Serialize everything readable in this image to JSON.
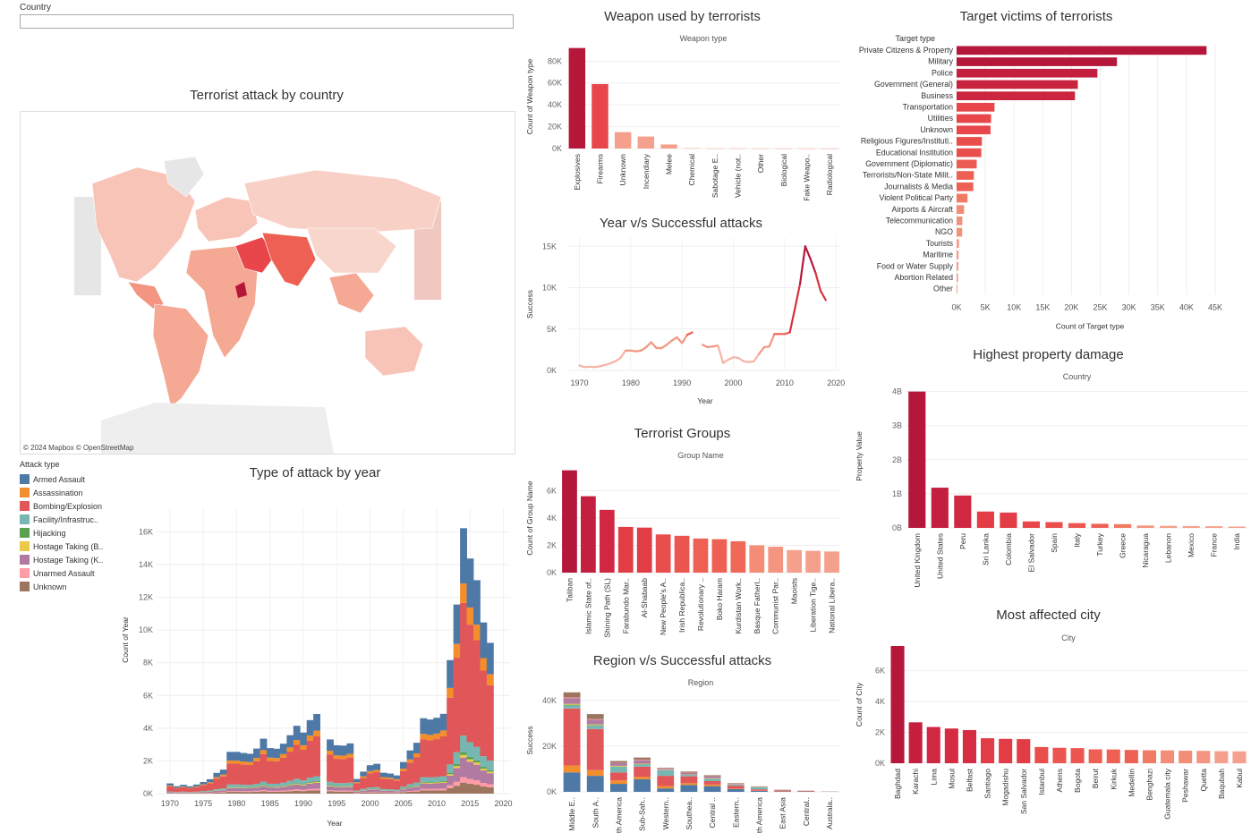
{
  "filter": {
    "label": "Country",
    "value": ""
  },
  "map": {
    "title": "Terrorist attack by country",
    "credit": "© 2024 Mapbox  © OpenStreetMap"
  },
  "colors": {
    "dark": "#b5173b",
    "mid": "#e8464a",
    "light": "#f5a08d",
    "grid": "#eeeeee"
  },
  "chart_data": [
    {
      "id": "weapon",
      "type": "bar",
      "title": "Weapon used by terrorists",
      "subtitle": "Weapon type",
      "ylabel": "Count of Weapon type",
      "ylim": [
        0,
        95000
      ],
      "yticks": [
        0,
        20000,
        40000,
        60000,
        80000
      ],
      "ytick_labels": [
        "0K",
        "20K",
        "40K",
        "60K",
        "80K"
      ],
      "categories": [
        "Explosives",
        "Firearms",
        "Unknown",
        "Incendiary",
        "Melee",
        "Chemical",
        "Sabotage E..",
        "Vehicle (not..",
        "Other",
        "Biological",
        "Fake Weapo..",
        "Radiological"
      ],
      "values": [
        92000,
        59000,
        15000,
        11000,
        3700,
        320,
        140,
        140,
        110,
        35,
        30,
        15
      ],
      "colors": [
        "#b5173b",
        "#e8464a",
        "#f5a08d",
        "#f5a08d",
        "#f5a08d",
        "#f5a08d",
        "#f5a08d",
        "#f5a08d",
        "#f5a08d",
        "#f5a08d",
        "#f5a08d",
        "#f5a08d"
      ]
    },
    {
      "id": "target",
      "type": "bar",
      "orientation": "horizontal",
      "title": "Target victims of terrorists",
      "subtitle": "Target type",
      "xlabel": "Count of Target type",
      "xlim": [
        0,
        45000
      ],
      "xticks": [
        0,
        5000,
        10000,
        15000,
        20000,
        25000,
        30000,
        35000,
        40000,
        45000
      ],
      "xtick_labels": [
        "0K",
        "5K",
        "10K",
        "15K",
        "20K",
        "25K",
        "30K",
        "35K",
        "40K",
        "45K"
      ],
      "categories": [
        "Private Citizens & Property",
        "Military",
        "Police",
        "Government (General)",
        "Business",
        "Transportation",
        "Utilities",
        "Unknown",
        "Religious Figures/Instituti..",
        "Educational Institution",
        "Government (Diplomatic)",
        "Terrorists/Non-State Milit..",
        "Journalists & Media",
        "Violent Political Party",
        "Airports & Aircraft",
        "Telecommunication",
        "NGO",
        "Tourists",
        "Maritime",
        "Food or Water Supply",
        "Abortion Related",
        "Other"
      ],
      "values": [
        43500,
        27900,
        24500,
        21100,
        20600,
        6600,
        6000,
        5900,
        4400,
        4300,
        3500,
        3000,
        2900,
        1900,
        1300,
        1000,
        970,
        440,
        350,
        320,
        260,
        140
      ],
      "colors": [
        "#b5173b",
        "#b5173b",
        "#c41f3f",
        "#c8223f",
        "#cc2540",
        "#e8464a",
        "#e8464a",
        "#e8464a",
        "#ea4e4c",
        "#ea4e4c",
        "#ed5c52",
        "#ee6054",
        "#ee6054",
        "#f07a62",
        "#f38d75",
        "#f3927a",
        "#f3927a",
        "#f5a08d",
        "#f5a08d",
        "#f5a08d",
        "#f5a08d",
        "#f5a08d"
      ]
    },
    {
      "id": "success",
      "type": "line",
      "title": "Year v/s Successful attacks",
      "xlabel": "Year",
      "ylabel": "Success",
      "xlim": [
        1968,
        2021
      ],
      "ylim": [
        0,
        16000
      ],
      "xticks": [
        1970,
        1980,
        1990,
        2000,
        2010,
        2020
      ],
      "yticks": [
        0,
        5000,
        10000,
        15000
      ],
      "ytick_labels": [
        "0K",
        "5K",
        "10K",
        "15K"
      ],
      "x": [
        1970,
        1971,
        1972,
        1973,
        1974,
        1975,
        1976,
        1977,
        1978,
        1979,
        1980,
        1981,
        1982,
        1983,
        1984,
        1985,
        1986,
        1987,
        1988,
        1989,
        1990,
        1991,
        1992,
        1994,
        1995,
        1996,
        1997,
        1998,
        1999,
        2000,
        2001,
        2002,
        2003,
        2004,
        2005,
        2006,
        2007,
        2008,
        2009,
        2010,
        2011,
        2012,
        2013,
        2014,
        2015,
        2016,
        2017,
        2018
      ],
      "y": [
        600,
        400,
        450,
        400,
        500,
        650,
        850,
        1100,
        1500,
        2400,
        2400,
        2300,
        2400,
        2800,
        3400,
        2700,
        2700,
        3100,
        3600,
        4000,
        3300,
        4300,
        4600,
        3100,
        2800,
        2900,
        3000,
        900,
        1300,
        1600,
        1500,
        1100,
        1000,
        1100,
        2000,
        2800,
        2900,
        4400,
        4400,
        4400,
        4600,
        7500,
        10500,
        15000,
        13500,
        11800,
        9600,
        8500
      ]
    },
    {
      "id": "groups",
      "type": "bar",
      "title": "Terrorist Groups",
      "subtitle": "Group Name",
      "ylabel": "Count of Group Name",
      "ylim": [
        0,
        8000
      ],
      "yticks": [
        0,
        2000,
        4000,
        6000
      ],
      "ytick_labels": [
        "0K",
        "2K",
        "4K",
        "6K"
      ],
      "categories": [
        "Taliban",
        "Islamic State of..",
        "Shining Path (SL)",
        "Farabundo Mar..",
        "Al-Shabaab",
        "New People's A..",
        "Irish Republica..",
        "Revolutionary ..",
        "Boko Haram",
        "Kurdistan Work..",
        "Basque Fatherl..",
        "Communist Par..",
        "Maoists",
        "Liberation Tige..",
        "National Libera.."
      ],
      "values": [
        7500,
        5600,
        4600,
        3350,
        3300,
        2800,
        2700,
        2500,
        2450,
        2300,
        2000,
        1900,
        1650,
        1600,
        1550
      ],
      "colors": [
        "#b5173b",
        "#c41f3f",
        "#d02842",
        "#e23c46",
        "#e23c46",
        "#ea4e4c",
        "#ec5651",
        "#ee6054",
        "#ee6054",
        "#f06858",
        "#f38d75",
        "#f39580",
        "#f5a08d",
        "#f5a08d",
        "#f5a08d"
      ]
    },
    {
      "id": "region",
      "type": "bar",
      "stacked": true,
      "title": "Region v/s Successful attacks",
      "subtitle": "Region",
      "ylabel": "Success",
      "ylim": [
        0,
        45000
      ],
      "yticks": [
        0,
        20000,
        40000
      ],
      "ytick_labels": [
        "0K",
        "20K",
        "40K"
      ],
      "categories": [
        "Middle E..",
        "South A..",
        "South America",
        "Sub-Sah..",
        "Western..",
        "Southea..",
        "Central ..",
        "Eastern..",
        "North America",
        "East Asia",
        "Central..",
        "Australa.."
      ],
      "series": [
        {
          "name": "Armed Assault",
          "values": [
            8500,
            7000,
            3500,
            5500,
            1500,
            3000,
            2500,
            1200,
            400,
            150,
            150,
            30
          ]
        },
        {
          "name": "Assassination",
          "values": [
            3000,
            2500,
            1500,
            1000,
            1000,
            800,
            700,
            200,
            100,
            60,
            50,
            10
          ]
        },
        {
          "name": "Bombing/Explosion",
          "values": [
            25000,
            18000,
            3500,
            4500,
            4500,
            3000,
            1500,
            1300,
            600,
            400,
            200,
            60
          ]
        },
        {
          "name": "Facility/Infrastructure",
          "values": [
            1300,
            1500,
            2500,
            1000,
            2500,
            600,
            1000,
            400,
            900,
            100,
            40,
            40
          ]
        },
        {
          "name": "Hijacking",
          "values": [
            300,
            200,
            100,
            100,
            50,
            80,
            80,
            30,
            50,
            20,
            5,
            2
          ]
        },
        {
          "name": "Hostage Taking (Barricade)",
          "values": [
            400,
            300,
            300,
            200,
            100,
            100,
            200,
            50,
            30,
            10,
            10,
            2
          ]
        },
        {
          "name": "Hostage Taking (Kidnapping)",
          "values": [
            2500,
            2000,
            1200,
            1500,
            300,
            700,
            700,
            200,
            100,
            50,
            40,
            5
          ]
        },
        {
          "name": "Unarmed Assault",
          "values": [
            300,
            300,
            100,
            200,
            300,
            100,
            100,
            100,
            100,
            80,
            10,
            20
          ]
        },
        {
          "name": "Unknown",
          "values": [
            2200,
            2200,
            800,
            1000,
            300,
            500,
            500,
            300,
            150,
            100,
            50,
            30
          ]
        }
      ]
    },
    {
      "id": "damage",
      "type": "bar",
      "title": "Highest property damage",
      "subtitle": "Country",
      "ylabel": "Property Value",
      "ylim": [
        0,
        4200000000
      ],
      "yticks": [
        0,
        1000000000,
        2000000000,
        3000000000,
        4000000000
      ],
      "ytick_labels": [
        "0B",
        "1B",
        "2B",
        "3B",
        "4B"
      ],
      "categories": [
        "United Kingdom",
        "United States",
        "Peru",
        "Sri Lanka",
        "Colombia",
        "El Salvador",
        "Spain",
        "Italy",
        "Turkey",
        "Greece",
        "Nicaragua",
        "Lebanon",
        "Mexico",
        "France",
        "India"
      ],
      "values": [
        4000000000,
        1180000000,
        950000000,
        480000000,
        450000000,
        190000000,
        170000000,
        140000000,
        120000000,
        110000000,
        70000000,
        60000000,
        55000000,
        50000000,
        40000000
      ],
      "colors": [
        "#b5173b",
        "#c41f3f",
        "#d02842",
        "#e23c46",
        "#e23c46",
        "#e8464a",
        "#ea4e4c",
        "#ec5651",
        "#ee6054",
        "#f07a62",
        "#f39580",
        "#f5a08d",
        "#f5a08d",
        "#f5a08d",
        "#f5a08d"
      ]
    },
    {
      "id": "city",
      "type": "bar",
      "title": "Most affected city",
      "subtitle": "City",
      "ylabel": "Count of City",
      "ylim": [
        0,
        7600
      ],
      "yticks": [
        0,
        2000,
        4000,
        6000
      ],
      "ytick_labels": [
        "0K",
        "2K",
        "4K",
        "6K"
      ],
      "categories": [
        "Baghdad",
        "Karachi",
        "Lima",
        "Mosul",
        "Belfast",
        "Santiago",
        "Mogadishu",
        "San Salvador",
        "Istanbul",
        "Athens",
        "Bogota",
        "Beirut",
        "Kirkuk",
        "Medellin",
        "Benghazi",
        "Guatemala city",
        "Peshawar",
        "Quetta",
        "Baqubah",
        "Kabul"
      ],
      "values": [
        7600,
        2650,
        2350,
        2250,
        2150,
        1620,
        1580,
        1560,
        1050,
        1000,
        980,
        900,
        890,
        860,
        840,
        830,
        810,
        800,
        780,
        770
      ],
      "colors": [
        "#b5173b",
        "#c41f3f",
        "#d02842",
        "#d52c43",
        "#d52c43",
        "#e23c46",
        "#e23c46",
        "#e23c46",
        "#ea4e4c",
        "#ec5651",
        "#ec5651",
        "#ee6054",
        "#ee6054",
        "#ee6054",
        "#f07a62",
        "#f38d75",
        "#f38d75",
        "#f39580",
        "#f5a08d",
        "#f5a08d"
      ]
    },
    {
      "id": "attack",
      "type": "area",
      "stacked": true,
      "title": "Type of attack by year",
      "xlabel": "Year",
      "ylabel": "Count of Year",
      "xlim": [
        1968,
        2021
      ],
      "ylim": [
        0,
        17500
      ],
      "xticks": [
        1970,
        1975,
        1980,
        1985,
        1990,
        1995,
        2000,
        2005,
        2010,
        2015,
        2020
      ],
      "yticks": [
        0,
        2000,
        4000,
        6000,
        8000,
        10000,
        12000,
        14000,
        16000
      ],
      "ytick_labels": [
        "0K",
        "2K",
        "4K",
        "6K",
        "8K",
        "10K",
        "12K",
        "14K",
        "16K"
      ],
      "legend_title": "Attack type",
      "legend": "left",
      "x": [
        1970,
        1971,
        1972,
        1973,
        1974,
        1975,
        1976,
        1977,
        1978,
        1979,
        1980,
        1981,
        1982,
        1983,
        1984,
        1985,
        1986,
        1987,
        1988,
        1989,
        1990,
        1991,
        1992,
        1993,
        1994,
        1995,
        1996,
        1997,
        1998,
        1999,
        2000,
        2001,
        2002,
        2003,
        2004,
        2005,
        2006,
        2007,
        2008,
        2009,
        2010,
        2011,
        2012,
        2013,
        2014,
        2015,
        2016,
        2017,
        2018
      ],
      "totals": [
        650,
        470,
        560,
        470,
        580,
        740,
        920,
        1320,
        1530,
        2660,
        2660,
        2590,
        2540,
        2870,
        3500,
        2900,
        2860,
        3180,
        3720,
        4320,
        3890,
        4680,
        5070,
        0,
        3450,
        3080,
        3060,
        3200,
        930,
        1400,
        1810,
        1900,
        1330,
        1280,
        1160,
        2010,
        2750,
        3240,
        4800,
        4720,
        4830,
        5080,
        8500,
        12040,
        16900,
        14970,
        13590,
        10900,
        9600
      ],
      "series": [
        {
          "name": "Armed Assault",
          "color": "#4e79a7",
          "share": 0.2
        },
        {
          "name": "Assassination",
          "color": "#f28e2b",
          "share": 0.07
        },
        {
          "name": "Bombing/Explosion",
          "color": "#e15759",
          "share": 0.48
        },
        {
          "name": "Facility/Infrastruc..",
          "color": "#76b7b2",
          "share": 0.06
        },
        {
          "name": "Hijacking",
          "color": "#59a14f",
          "share": 0.01
        },
        {
          "name": "Hostage Taking (B..",
          "color": "#edc948",
          "share": 0.01
        },
        {
          "name": "Hostage Taking (K..",
          "color": "#b07aa1",
          "share": 0.07
        },
        {
          "name": "Unarmed Assault",
          "color": "#ff9da7",
          "share": 0.02
        },
        {
          "name": "Unknown",
          "color": "#9c755f",
          "share": 0.04
        }
      ]
    }
  ]
}
